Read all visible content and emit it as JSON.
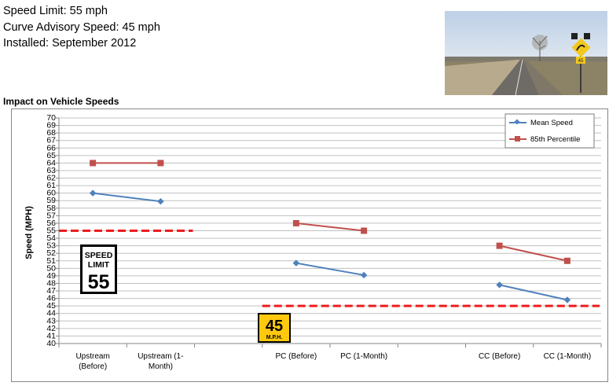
{
  "info": {
    "speed_limit": "Speed Limit: 55 mph",
    "advisory": "Curve Advisory Speed: 45 mph",
    "installed": "Installed: September 2012"
  },
  "section_title": "Impact on Vehicle Speeds",
  "colors": {
    "mean": "#4f81bd",
    "p85": "#c0504d",
    "reference": "#ee1c1c",
    "advisory_sign": "#ffc90e",
    "grid": "#c0c0c0"
  },
  "signs": {
    "speed_limit_line1": "SPEED",
    "speed_limit_line2": "LIMIT",
    "speed_limit_value": "55",
    "advisory_value": "45",
    "advisory_unit": "M.P.H."
  },
  "chart_data": {
    "type": "line",
    "ylabel": "Speed (MPH)",
    "ylim": [
      40,
      70
    ],
    "y_tick_step": 1,
    "grid": true,
    "legend_position": "top-right",
    "categories": [
      [
        "Upstream",
        "(Before)"
      ],
      [
        "Upstream (1-",
        "Month)"
      ],
      [
        ""
      ],
      [
        "PC (Before)"
      ],
      [
        "PC (1-Month)"
      ],
      [
        ""
      ],
      [
        "CC (Before)"
      ],
      [
        "CC (1-Month)"
      ]
    ],
    "series": [
      {
        "name": "Mean Speed",
        "marker": "diamond",
        "values": [
          60.0,
          58.9,
          null,
          50.7,
          49.1,
          null,
          47.8,
          45.8
        ]
      },
      {
        "name": "85th Percentile",
        "marker": "square",
        "values": [
          64,
          64,
          null,
          56,
          55,
          null,
          53,
          51
        ]
      }
    ],
    "reference_lines": [
      {
        "label": "Speed Limit",
        "value": 55,
        "from_category": 0,
        "to_category": 1
      },
      {
        "label": "Curve Advisory Speed",
        "value": 45,
        "from_category": 3,
        "to_category": 7
      }
    ]
  }
}
